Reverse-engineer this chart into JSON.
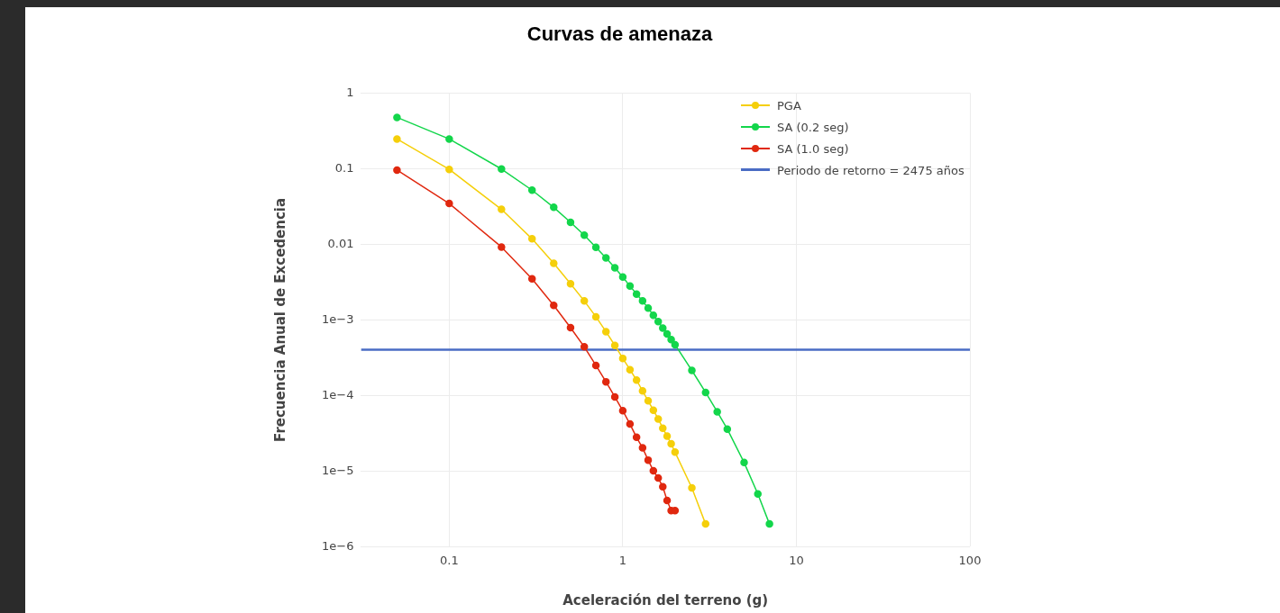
{
  "chart_data": {
    "type": "line",
    "title": "Curvas de amenaza",
    "xlabel": "Aceleración del terreno (g)",
    "ylabel": "Frecuencia Anual de Excedencia",
    "log": "xy",
    "grid": true,
    "legend": "top right",
    "marker": "circle",
    "line_style": "solid",
    "xlim": [
      0.031,
      100
    ],
    "xticks": [
      0.1,
      1,
      10,
      100
    ],
    "ylim": [
      1e-06,
      1
    ],
    "yticks": [
      1,
      0.1,
      0.01,
      {
        "value": 0.001,
        "label": "1e−3"
      },
      {
        "value": 0.0001,
        "label": "1e−4"
      },
      {
        "value": 1e-05,
        "label": "1e−5"
      },
      {
        "value": 1e-06,
        "label": "1e−6"
      }
    ],
    "series": [
      {
        "name": "PGA",
        "color": "#f5cf0a",
        "x": [
          0.05,
          0.1,
          0.2,
          0.3,
          0.4,
          0.5,
          0.6,
          0.7,
          0.8,
          0.9,
          1.0,
          1.1,
          1.2,
          1.3,
          1.4,
          1.5,
          1.6,
          1.7,
          1.8,
          1.9,
          2.0,
          2.5,
          3.0
        ],
        "values": [
          0.247,
          0.098,
          0.029,
          0.0118,
          0.0056,
          0.003,
          0.00178,
          0.0011,
          0.0007,
          0.00046,
          0.00031,
          0.00022,
          0.00016,
          0.000115,
          8.5e-05,
          6.4e-05,
          4.9e-05,
          3.7e-05,
          2.9e-05,
          2.3e-05,
          1.78e-05,
          6e-06,
          2e-06
        ]
      },
      {
        "name": "SA (0.2 seg)",
        "color": "#13d64b",
        "x": [
          0.05,
          0.1,
          0.2,
          0.3,
          0.4,
          0.5,
          0.6,
          0.7,
          0.8,
          0.9,
          1.0,
          1.1,
          1.2,
          1.3,
          1.4,
          1.5,
          1.6,
          1.7,
          1.8,
          1.9,
          2.0,
          2.5,
          3.0,
          3.5,
          4,
          5,
          6,
          7
        ],
        "values": [
          0.477,
          0.247,
          0.099,
          0.052,
          0.0308,
          0.0195,
          0.0132,
          0.0091,
          0.0066,
          0.0049,
          0.0037,
          0.0028,
          0.0022,
          0.00178,
          0.00143,
          0.00115,
          0.00095,
          0.00078,
          0.00065,
          0.00055,
          0.00047,
          0.000215,
          0.00011,
          6.1e-05,
          3.6e-05,
          1.3e-05,
          5e-06,
          2e-06
        ]
      },
      {
        "name": "SA (1.0 seg)",
        "color": "#e0280f",
        "x": [
          0.05,
          0.1,
          0.2,
          0.3,
          0.4,
          0.5,
          0.6,
          0.7,
          0.8,
          0.9,
          1.0,
          1.1,
          1.2,
          1.3,
          1.4,
          1.5,
          1.6,
          1.7,
          1.8,
          1.9,
          2.0
        ],
        "values": [
          0.096,
          0.0346,
          0.0092,
          0.0035,
          0.00156,
          0.00079,
          0.00044,
          0.00025,
          0.000152,
          9.6e-05,
          6.3e-05,
          4.2e-05,
          2.8e-05,
          2.03e-05,
          1.4e-05,
          1.01e-05,
          8.1e-06,
          6.2e-06,
          4.1e-06,
          3e-06,
          3e-06
        ]
      },
      {
        "name": "Periodo de retorno = 2475 años",
        "color": "#4a6cc4",
        "marker": "none",
        "x": [
          0.031,
          100
        ],
        "values": [
          0.000404,
          0.000404
        ]
      }
    ]
  }
}
